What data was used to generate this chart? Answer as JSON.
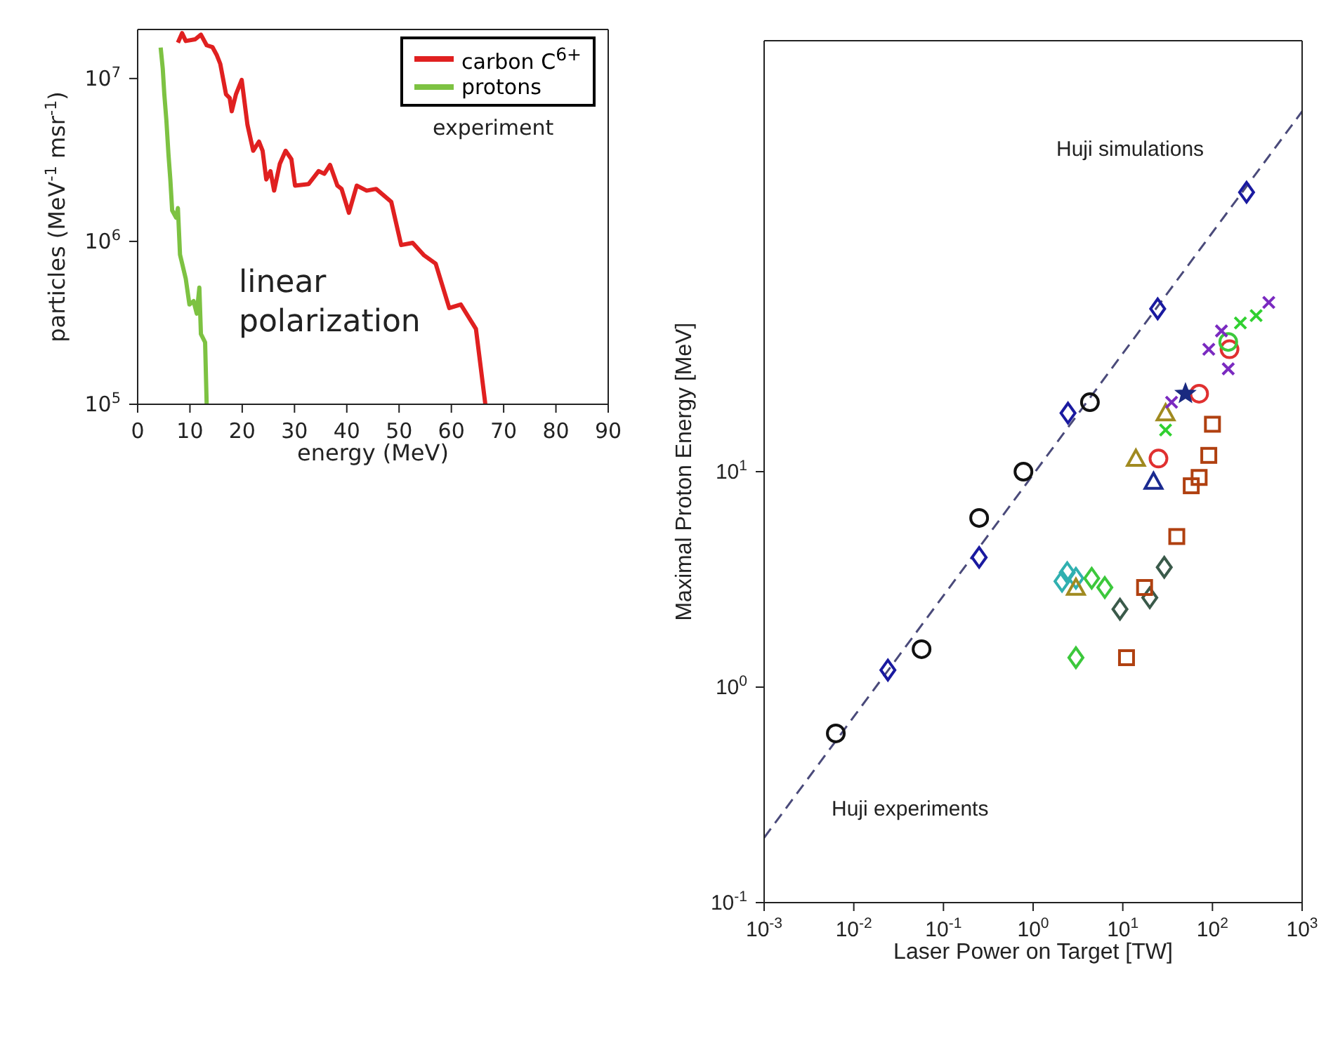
{
  "chart_data": [
    {
      "type": "line",
      "xlabel": "energy (MeV)",
      "ylabel": "particles (MeV$^{-1}$ msr$^{-1}$)",
      "log": "y",
      "xlim": [
        0,
        90
      ],
      "xticks": [
        0,
        10,
        20,
        30,
        40,
        50,
        60,
        70,
        80,
        90
      ],
      "ylim": [
        100000,
        20000000
      ],
      "yticks": [
        {
          "value": 100000,
          "label": "10$^{5}$"
        },
        {
          "value": 1000000,
          "label": "10$^{6}$"
        },
        {
          "value": 10000000,
          "label": "10$^{7}$"
        }
      ],
      "legend": "top right",
      "marker": "none",
      "line_style": "solid",
      "annotations": [
        "experiment",
        "linear polarization"
      ],
      "series": [
        {
          "name": "carbon C$^{6+}$",
          "color": "#e02020",
          "x": [
            7.7,
            8.5,
            9.2,
            11.0,
            12.1,
            13.2,
            14.3,
            15.1,
            15.8,
            16.9,
            17.6,
            18.0,
            18.8,
            19.9,
            21.0,
            22.1,
            23.2,
            23.9,
            24.6,
            25.4,
            26.1,
            27.2,
            28.3,
            29.4,
            30.1,
            32.7,
            34.6,
            35.7,
            36.8,
            38.2,
            39.0,
            40.4,
            41.9,
            43.8,
            45.6,
            48.5,
            50.4,
            52.6,
            54.8,
            57.0,
            59.6,
            61.8,
            64.7,
            66.5
          ],
          "values": [
            16600000,
            19000000,
            17000000,
            17400000,
            18600000,
            16000000,
            15600000,
            14000000,
            12300000,
            8000000,
            7600000,
            6300000,
            8000000,
            9800000,
            5200000,
            3600000,
            4100000,
            3600000,
            2400000,
            2700000,
            2050000,
            3000000,
            3600000,
            3200000,
            2200000,
            2250000,
            2700000,
            2600000,
            2950000,
            2200000,
            2100000,
            1500000,
            2200000,
            2050000,
            2100000,
            1750000,
            950000,
            980000,
            820000,
            730000,
            390000,
            410000,
            290000,
            100000
          ]
        },
        {
          "name": "protons",
          "color": "#7dc242",
          "x": [
            4.4,
            4.8,
            5.1,
            5.5,
            5.9,
            6.25,
            6.6,
            7.35,
            7.7,
            8.1,
            9.2,
            9.9,
            10.7,
            11.3,
            11.8,
            12.1,
            12.9,
            13.2
          ],
          "values": [
            15500000,
            11500000,
            8000000,
            5500000,
            3400000,
            2400000,
            1550000,
            1400000,
            1600000,
            830000,
            590000,
            410000,
            430000,
            360000,
            520000,
            270000,
            240000,
            100000
          ]
        }
      ]
    },
    {
      "type": "scatter",
      "xlabel": "Laser Power on Target [TW]",
      "ylabel": "Maximal Proton Energy [MeV]",
      "log": "xy",
      "xlim": [
        0.001,
        1000
      ],
      "xticks": [
        {
          "value": 0.001,
          "label": "10$^{-3}$"
        },
        {
          "value": 0.01,
          "label": "10$^{-2}$"
        },
        {
          "value": 0.1,
          "label": "10$^{-1}$"
        },
        {
          "value": 1,
          "label": "10$^{0}$"
        },
        {
          "value": 10,
          "label": "10$^{1}$"
        },
        {
          "value": 100,
          "label": "10$^{2}$"
        },
        {
          "value": 1000,
          "label": "10$^{3}$"
        }
      ],
      "ylim": [
        0.1,
        1000
      ],
      "yticks": [
        {
          "value": 0.1,
          "label": "10$^{-1}$"
        },
        {
          "value": 1,
          "label": "10$^{0}$"
        },
        {
          "value": 10,
          "label": "10$^{1}$"
        }
      ],
      "annotations": [
        "Huji simulations",
        "Huji experiments"
      ],
      "series": [
        {
          "type": "line",
          "color": "#4a4a7a",
          "line_style": "dashed",
          "marker": "none",
          "x": [
            0.001,
            1000
          ],
          "values": [
            0.2,
            470
          ]
        },
        {
          "color": "#111111",
          "marker": "circle",
          "x": [
            0.0063,
            0.057,
            0.25,
            0.78,
            4.3
          ],
          "values": [
            0.61,
            1.5,
            6.1,
            10,
            21
          ]
        },
        {
          "color": "#1a1aa0",
          "marker": "diamond",
          "x": [
            0.024,
            0.25,
            2.45,
            24.5,
            240
          ],
          "values": [
            1.2,
            4,
            18.7,
            57,
            198
          ]
        },
        {
          "color": "#30b0b0",
          "marker": "diamond",
          "x": [
            2.1,
            2.4,
            3.0
          ],
          "values": [
            3.1,
            3.4,
            3.2
          ]
        },
        {
          "color": "#3cc83c",
          "marker": "diamond",
          "x": [
            4.5,
            6.3,
            3.0
          ],
          "values": [
            3.2,
            2.9,
            1.37
          ]
        },
        {
          "color": "#3a5a4a",
          "marker": "diamond",
          "x": [
            9.3,
            20,
            29
          ],
          "values": [
            2.3,
            2.6,
            3.6
          ]
        },
        {
          "color": "#a08a20",
          "marker": "triangle",
          "x": [
            3.0,
            14,
            30
          ],
          "values": [
            2.9,
            11.5,
            18.7
          ]
        },
        {
          "color": "#1a2a90",
          "marker": "triangle",
          "x": [
            22
          ],
          "values": [
            9
          ]
        },
        {
          "color": "#e03030",
          "marker": "circle",
          "x": [
            25,
            71,
            155
          ],
          "values": [
            11.5,
            23,
            37
          ]
        },
        {
          "color": "#3cc83c",
          "marker": "circle",
          "x": [
            150
          ],
          "values": [
            40
          ]
        },
        {
          "color": "#30d030",
          "marker": "cross",
          "x": [
            30,
            205,
            307
          ],
          "values": [
            15.6,
            49,
            53
          ]
        },
        {
          "color": "#7a2ac0",
          "marker": "cross",
          "x": [
            35,
            91,
            126,
            150,
            425
          ],
          "values": [
            21,
            37,
            45,
            30,
            61
          ]
        },
        {
          "color": "#1a2a80",
          "marker": "star",
          "x": [
            50
          ],
          "values": [
            23
          ]
        },
        {
          "color": "#b04010",
          "marker": "square",
          "x": [
            11,
            17.5,
            40,
            58,
            71,
            91,
            100
          ],
          "values": [
            1.37,
            2.9,
            5.0,
            8.6,
            9.4,
            11.9,
            16.6
          ]
        }
      ]
    }
  ]
}
